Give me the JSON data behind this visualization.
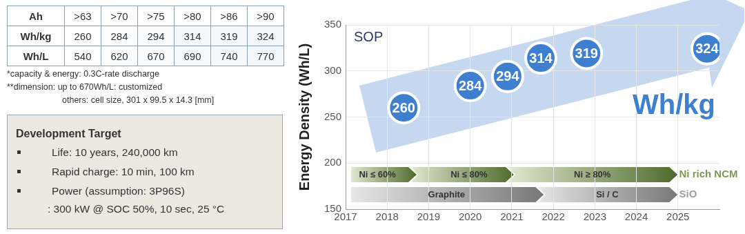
{
  "chart_data": [
    {
      "type": "heatmap",
      "xlabel": "Ah",
      "categories": [
        ">63",
        ">70",
        ">75",
        ">80",
        ">86",
        ">90"
      ],
      "y_categories": [
        "Wh/kg",
        "Wh/L"
      ],
      "cells": [
        [
          260,
          284,
          294,
          314,
          319,
          324
        ],
        [
          540,
          620,
          670,
          690,
          740,
          770
        ]
      ],
      "cell_labels": [
        [
          "260",
          "284",
          "294",
          "314",
          "319",
          "324"
        ],
        [
          "540",
          "620",
          "670",
          "690",
          "740",
          "770"
        ]
      ],
      "annotations": [
        "*capacity & energy: 0.3C-rate discharge",
        "**dimension: up to 670Wh/L: customized",
        "others: cell size, 301 x 99.5 x 14.3 [mm]"
      ]
    },
    {
      "type": "other",
      "title": "Development Target",
      "annotations": [
        "Life: 10 years, 240,000 km",
        "Rapid charge: 10 min, 100 km",
        "Power (assumption: 3P96S)",
        ": 300 kW @ SOC 50%, 10 sec, 25 °C"
      ]
    },
    {
      "type": "scatter",
      "ylabel": "Energy Density (Wh/L)",
      "x": [
        2018.4,
        2020.0,
        2020.9,
        2021.7,
        2022.8,
        2025.7
      ],
      "series": [
        {
          "name": "Wh/kg",
          "color": "#3f7fcf",
          "values": [
            260,
            284,
            294,
            314,
            319,
            324
          ]
        }
      ],
      "xlim": [
        2017,
        2026
      ],
      "xticks": [
        2017,
        2018,
        2019,
        2020,
        2021,
        2022,
        2023,
        2024,
        2025
      ],
      "ylim": [
        150,
        350
      ],
      "yticks": [
        150,
        200,
        250,
        300,
        350
      ],
      "grid": true,
      "marker": "circle",
      "data_labels": true,
      "annotations": [
        "SOP",
        "Ni ≤ 60%",
        "Ni ≤ 80%",
        "Ni ≥ 80%",
        "Ni rich NCM",
        "Graphite",
        "Si / C",
        "SiO"
      ]
    }
  ]
}
